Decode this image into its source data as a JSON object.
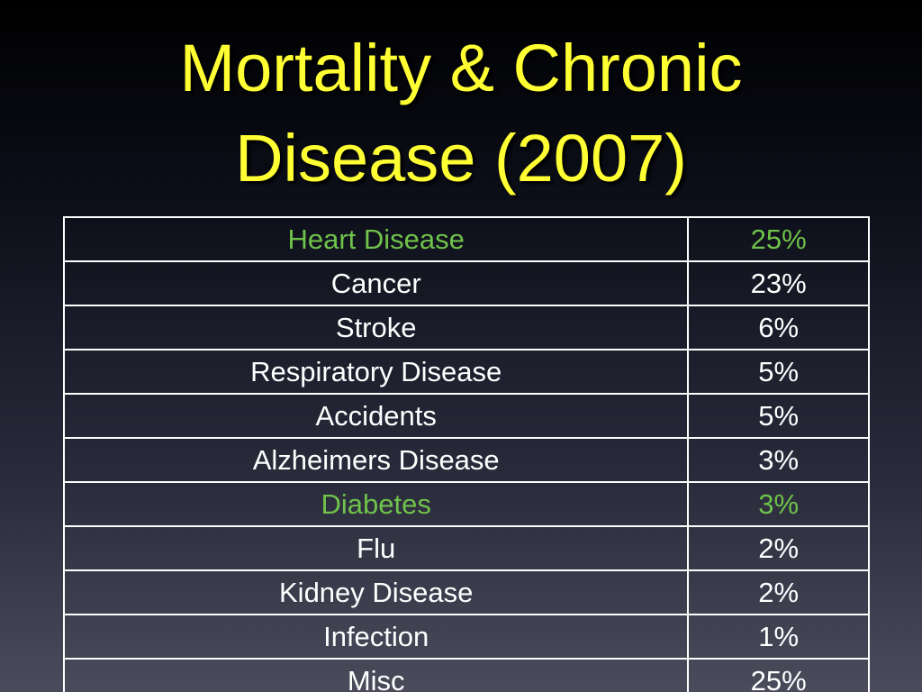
{
  "slide": {
    "title_line1": "Mortality & Chronic",
    "title_line2": "Disease (2007)",
    "title_color": "#ffff33",
    "highlight_color": "#6fc24a"
  },
  "table": {
    "rows": [
      {
        "cause": "Heart Disease",
        "percent": "25%",
        "highlight": true
      },
      {
        "cause": "Cancer",
        "percent": "23%",
        "highlight": false
      },
      {
        "cause": "Stroke",
        "percent": "6%",
        "highlight": false
      },
      {
        "cause": "Respiratory Disease",
        "percent": "5%",
        "highlight": false
      },
      {
        "cause": "Accidents",
        "percent": "5%",
        "highlight": false
      },
      {
        "cause": "Alzheimers Disease",
        "percent": "3%",
        "highlight": false
      },
      {
        "cause": "Diabetes",
        "percent": "3%",
        "highlight": true
      },
      {
        "cause": "Flu",
        "percent": "2%",
        "highlight": false
      },
      {
        "cause": "Kidney Disease",
        "percent": "2%",
        "highlight": false
      },
      {
        "cause": "Infection",
        "percent": "1%",
        "highlight": false
      },
      {
        "cause": "Misc",
        "percent": "25%",
        "highlight": false
      }
    ]
  }
}
